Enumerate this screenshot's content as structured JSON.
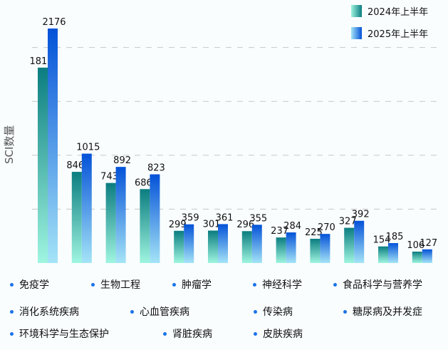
{
  "chart_data": {
    "type": "bar",
    "title": "",
    "xlabel": "",
    "ylabel": "SCI数量",
    "ylim": [
      0,
      2200
    ],
    "gridlines": [
      500,
      1000,
      1500,
      2000
    ],
    "grid": "horizontal dashed",
    "legend_placement": "top-right",
    "categories": [
      "免疫学",
      "生物工程",
      "肿瘤学",
      "神经科学",
      "食品科学与营养学",
      "消化系统疾病",
      "心血管疾病",
      "传染病",
      "糖尿病及并发症",
      "环境科学与生态保护",
      "肾脏疾病",
      "皮肤疾病"
    ],
    "series": [
      {
        "name": "2024年上半年",
        "values": [
          1813,
          846,
          743,
          686,
          299,
          301,
          296,
          237,
          225,
          327,
          154,
          106
        ],
        "colors": [
          "#0b7d80",
          "#9ff5e0"
        ]
      },
      {
        "name": "2025年上半年",
        "values": [
          2176,
          1015,
          892,
          823,
          359,
          361,
          355,
          284,
          270,
          392,
          185,
          127
        ],
        "colors": [
          "#0452d8",
          "#a5e4f7"
        ]
      }
    ]
  }
}
